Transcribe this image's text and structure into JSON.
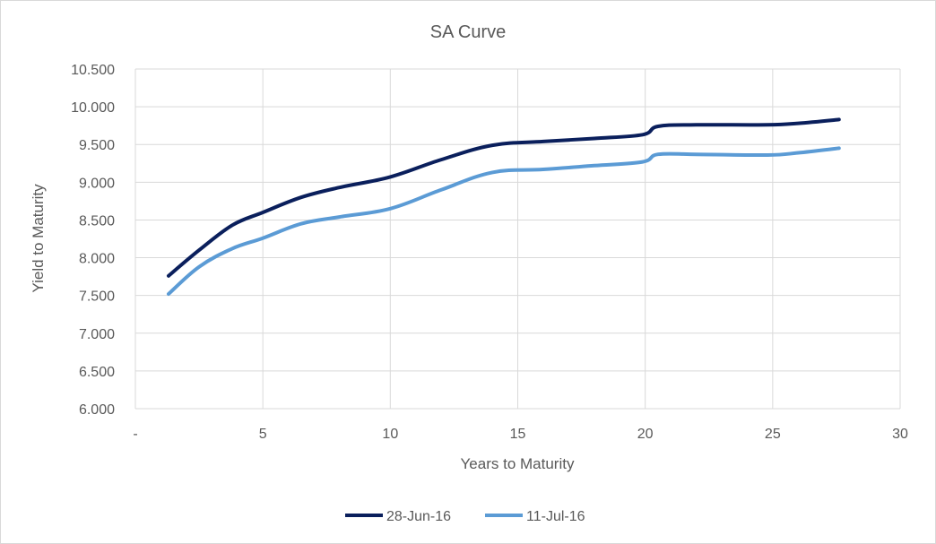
{
  "chart_data": {
    "type": "line",
    "title": "SA Curve",
    "xlabel": "Years to Maturity",
    "ylabel": "Yield to Maturity",
    "xlim": [
      0,
      30
    ],
    "ylim": [
      6.0,
      10.5
    ],
    "x_ticks": [
      {
        "value": 0,
        "label": "-"
      },
      {
        "value": 5,
        "label": "5"
      },
      {
        "value": 10,
        "label": "10"
      },
      {
        "value": 15,
        "label": "15"
      },
      {
        "value": 20,
        "label": "20"
      },
      {
        "value": 25,
        "label": "25"
      },
      {
        "value": 30,
        "label": "30"
      }
    ],
    "y_ticks": [
      {
        "value": 6.0,
        "label": "6.000"
      },
      {
        "value": 6.5,
        "label": "6.500"
      },
      {
        "value": 7.0,
        "label": "7.000"
      },
      {
        "value": 7.5,
        "label": "7.500"
      },
      {
        "value": 8.0,
        "label": "8.000"
      },
      {
        "value": 8.5,
        "label": "8.500"
      },
      {
        "value": 9.0,
        "label": "9.000"
      },
      {
        "value": 9.5,
        "label": "9.500"
      },
      {
        "value": 10.0,
        "label": "10.000"
      },
      {
        "value": 10.5,
        "label": "10.500"
      }
    ],
    "grid": true,
    "legend_position": "bottom",
    "series": [
      {
        "name": "28-Jun-16",
        "color": "#0a1f5c",
        "points": [
          [
            1.3,
            7.76
          ],
          [
            2.5,
            8.1
          ],
          [
            3.8,
            8.43
          ],
          [
            5.0,
            8.6
          ],
          [
            6.5,
            8.8
          ],
          [
            8.0,
            8.93
          ],
          [
            10.0,
            9.07
          ],
          [
            12.0,
            9.3
          ],
          [
            14.0,
            9.49
          ],
          [
            16.0,
            9.54
          ],
          [
            18.0,
            9.58
          ],
          [
            19.9,
            9.63
          ],
          [
            20.5,
            9.74
          ],
          [
            22.0,
            9.76
          ],
          [
            24.8,
            9.76
          ],
          [
            26.0,
            9.78
          ],
          [
            27.6,
            9.83
          ]
        ]
      },
      {
        "name": "11-Jul-16",
        "color": "#5b9bd5",
        "points": [
          [
            1.3,
            7.52
          ],
          [
            2.5,
            7.88
          ],
          [
            3.8,
            8.12
          ],
          [
            5.0,
            8.26
          ],
          [
            6.5,
            8.45
          ],
          [
            8.0,
            8.54
          ],
          [
            10.0,
            8.65
          ],
          [
            12.0,
            8.9
          ],
          [
            14.0,
            9.13
          ],
          [
            16.0,
            9.17
          ],
          [
            18.0,
            9.22
          ],
          [
            19.9,
            9.27
          ],
          [
            20.5,
            9.37
          ],
          [
            22.0,
            9.37
          ],
          [
            24.8,
            9.36
          ],
          [
            26.0,
            9.39
          ],
          [
            27.6,
            9.45
          ]
        ]
      }
    ]
  }
}
